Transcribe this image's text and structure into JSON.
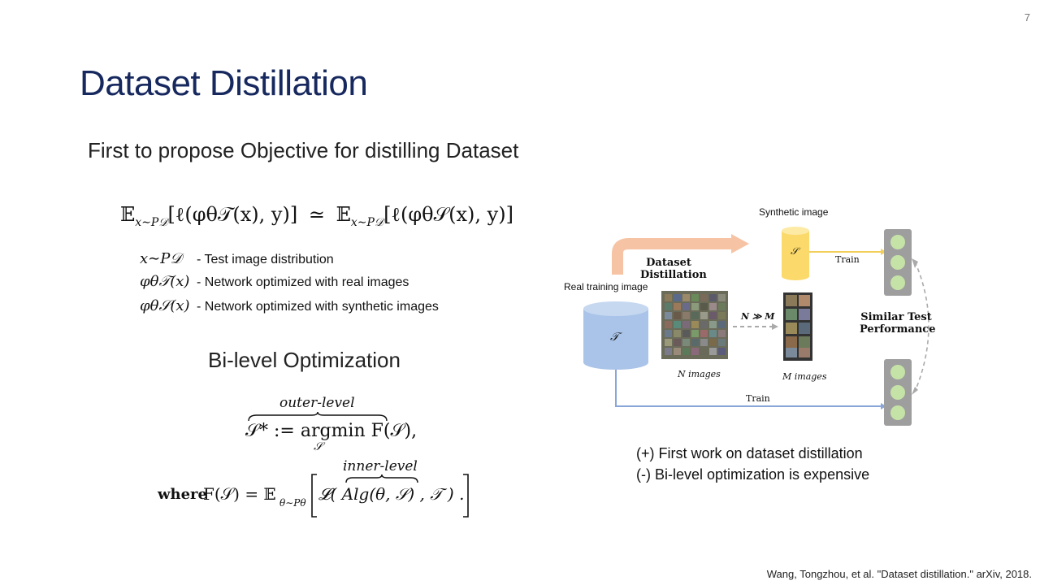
{
  "slide": {
    "page_number": "7",
    "title": "Dataset Distillation",
    "subtitle": "First to propose Objective for distilling Dataset",
    "bilevel_heading": "Bi-level Optimization",
    "citation": "Wang, Tongzhou, et al. \"Dataset distillation.\" arXiv, 2018."
  },
  "equation": {
    "lhs": "𝔼",
    "lhs_sub": "x∼P𝒟",
    "lhs_body": "[ℓ(φθ𝒯(x), y)]",
    "approx": "≃",
    "rhs": "𝔼",
    "rhs_sub": "x∼P𝒟",
    "rhs_body": "[ℓ(φθ𝒮(x), y)]"
  },
  "legend": [
    {
      "symbol": "x∼P𝒟",
      "text": "- Test image distribution"
    },
    {
      "symbol": "φθ𝒯(x)",
      "text": "- Network optimized with real images"
    },
    {
      "symbol": "φθ𝒮(x)",
      "text": "- Network optimized with synthetic images"
    }
  ],
  "objective": {
    "outer_label": "outer-level",
    "outer_expr": "𝒮* := argmin F(𝒮),",
    "argmin_sub": "𝒮",
    "inner_label": "inner-level",
    "where": "where",
    "inner_lhs": "F(𝒮) = 𝔼",
    "inner_sub": "θ∼Pθ",
    "inner_expr": "𝓛( Alg(θ, 𝒮) , 𝒯 ) ."
  },
  "diagram": {
    "synthetic_label": "Synthetic image",
    "real_label": "Real training image",
    "dd_label_1": "Dataset",
    "dd_label_2": "Distillation",
    "synthetic_symbol": "𝒮",
    "real_symbol": "𝒯",
    "train_top": "Train",
    "train_bottom": "Train",
    "n_images": "N images",
    "m_images": "M images",
    "n_gg_m": "N ≫ M",
    "similar_1": "Similar Test",
    "similar_2": "Performance",
    "colors": {
      "cylinder_blue": "#a9c4e8",
      "cylinder_yellow": "#fbd96a",
      "arrow_orange": "#f6c4a4",
      "line_blue": "#8aa6d8",
      "line_yellow": "#f2cf5a",
      "traffic_body": "#9e9e9e",
      "traffic_light": "#c5e3a7"
    }
  },
  "notes": {
    "plus": "(+) First work on dataset distillation",
    "minus": "(-) Bi-level optimization is expensive"
  }
}
